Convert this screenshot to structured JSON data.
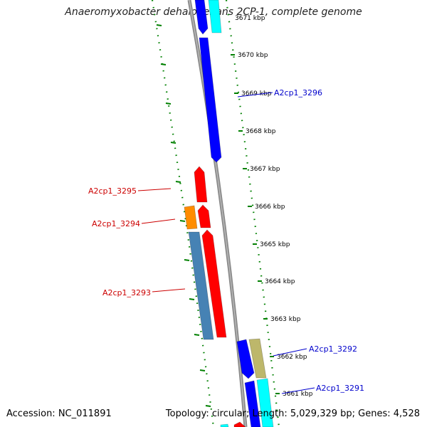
{
  "header": {
    "title": "Anaeromyxobacter dehalogenans 2CP-1, complete genome"
  },
  "footer": {
    "accession": "Accession: NC_011891",
    "stats": "Topology: circular; Length: 5,029,329 bp; Genes: 4,528"
  },
  "colors": {
    "backbone": "#8a8a8a",
    "tick_dots": "#008000",
    "forward_label": "#0000cc",
    "reverse_label": "#cc0000"
  },
  "scale": {
    "ticks": [
      "3670 kbp",
      "3669 kbp",
      "3668 kbp",
      "3667 kbp",
      "3666 kbp",
      "3665 kbp",
      "3664 kbp",
      "3663 kbp",
      "3662 kbp",
      "3661 kbp"
    ],
    "partial_tick": "3671 kbp"
  },
  "genes": {
    "forward": [
      {
        "label": "A2cp1_3296",
        "color": "#0000ff"
      },
      {
        "label": "A2cp1_3292",
        "color": "#0000ff"
      },
      {
        "label": "A2cp1_3291",
        "color": "#0000ff"
      }
    ],
    "reverse": [
      {
        "label": "A2cp1_3295",
        "color": "#ff0000"
      },
      {
        "label": "A2cp1_3294",
        "color": "#ff0000"
      },
      {
        "label": "A2cp1_3293",
        "color": "#ff0000"
      }
    ]
  },
  "feature_colors": {
    "cds_forward": "#0000ff",
    "cds_reverse": "#ff0000",
    "cyan_track": "#00ffff",
    "orange_track": "#ff8c00",
    "steelblue_track": "#4682b4",
    "khaki_track": "#bdb76b"
  }
}
